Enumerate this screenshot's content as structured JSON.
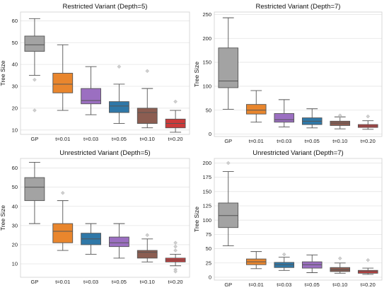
{
  "chart_data": [
    {
      "type": "box",
      "title": "Restricted Variant (Depth=5)",
      "xlabel": "",
      "ylabel": "Tree Size",
      "ylim": [
        8,
        64
      ],
      "yticks": [
        10,
        20,
        30,
        40,
        50,
        60
      ],
      "grid": true,
      "categories": [
        "GP",
        "t=0.01",
        "t=0.03",
        "t=0.05",
        "t=0.10",
        "t=0.20"
      ],
      "series": [
        {
          "category": "GP",
          "whisker_low": 35,
          "q1": 46,
          "median": 49,
          "q3": 53,
          "whisker_high": 61,
          "outliers": [
            33,
            19
          ],
          "color": "#a3a3a3"
        },
        {
          "category": "t=0.01",
          "whisker_low": 19,
          "q1": 27,
          "median": 31,
          "q3": 36,
          "whisker_high": 49,
          "outliers": [],
          "color": "#e9862d"
        },
        {
          "category": "t=0.03",
          "whisker_low": 17,
          "q1": 22,
          "median": 23.5,
          "q3": 29,
          "whisker_high": 39,
          "outliers": [],
          "color": "#9b6fc1"
        },
        {
          "category": "t=0.05",
          "whisker_low": 13,
          "q1": 18,
          "median": 21,
          "q3": 23,
          "whisker_high": 31,
          "outliers": [
            39
          ],
          "color": "#2f78a8"
        },
        {
          "category": "t=0.10",
          "whisker_low": 11,
          "q1": 13,
          "median": 18,
          "q3": 20,
          "whisker_high": 29,
          "outliers": [
            37
          ],
          "color": "#8c5d51"
        },
        {
          "category": "t=0.20",
          "whisker_low": 9,
          "q1": 11,
          "median": 13,
          "q3": 15,
          "whisker_high": 19,
          "outliers": [
            23
          ],
          "color": "#cc3a3a"
        }
      ]
    },
    {
      "type": "box",
      "title": "Restricted Variant (Depth=7)",
      "xlabel": "",
      "ylabel": "Tree Size",
      "ylim": [
        -5,
        255
      ],
      "yticks": [
        0,
        50,
        100,
        150,
        200,
        250
      ],
      "grid": true,
      "categories": [
        "GP",
        "t=0.01",
        "t=0.03",
        "t=0.05",
        "t=0.10",
        "t=0.20"
      ],
      "series": [
        {
          "category": "GP",
          "whisker_low": 52,
          "q1": 97,
          "median": 111,
          "q3": 180,
          "whisker_high": 243,
          "outliers": [],
          "color": "#a3a3a3"
        },
        {
          "category": "t=0.01",
          "whisker_low": 25,
          "q1": 42,
          "median": 50,
          "q3": 62,
          "whisker_high": 91,
          "outliers": [],
          "color": "#e9862d"
        },
        {
          "category": "t=0.03",
          "whisker_low": 15,
          "q1": 25,
          "median": 30,
          "q3": 43,
          "whisker_high": 72,
          "outliers": [],
          "color": "#9b6fc1"
        },
        {
          "category": "t=0.05",
          "whisker_low": 13,
          "q1": 20,
          "median": 27,
          "q3": 34,
          "whisker_high": 53,
          "outliers": [],
          "color": "#2f78a8"
        },
        {
          "category": "t=0.10",
          "whisker_low": 11,
          "q1": 18,
          "median": 23,
          "q3": 27,
          "whisker_high": 36,
          "outliers": [
            39
          ],
          "color": "#8c5d51"
        },
        {
          "category": "t=0.20",
          "whisker_low": 10,
          "q1": 14,
          "median": 17,
          "q3": 20,
          "whisker_high": 28,
          "outliers": [
            37
          ],
          "color": "#cc3a3a"
        }
      ]
    },
    {
      "type": "box",
      "title": "Unrestricted Variant (Depth=5)",
      "xlabel": "",
      "ylabel": "Tree Size",
      "ylim": [
        3,
        65
      ],
      "yticks": [
        10,
        20,
        30,
        40,
        50,
        60
      ],
      "grid": true,
      "categories": [
        "GP",
        "t=0.01",
        "t=0.03",
        "t=0.05",
        "t=0.10",
        "t=0.20"
      ],
      "series": [
        {
          "category": "GP",
          "whisker_low": 31,
          "q1": 43,
          "median": 50,
          "q3": 55,
          "whisker_high": 63,
          "outliers": [],
          "color": "#a3a3a3"
        },
        {
          "category": "t=0.01",
          "whisker_low": 17,
          "q1": 21,
          "median": 27,
          "q3": 31,
          "whisker_high": 43,
          "outliers": [
            47
          ],
          "color": "#e9862d"
        },
        {
          "category": "t=0.03",
          "whisker_low": 15,
          "q1": 20,
          "median": 23,
          "q3": 26,
          "whisker_high": 31,
          "outliers": [],
          "color": "#2f78a8"
        },
        {
          "category": "t=0.05",
          "whisker_low": 13,
          "q1": 19,
          "median": 21,
          "q3": 24,
          "whisker_high": 31,
          "outliers": [],
          "color": "#9b6fc1"
        },
        {
          "category": "t=0.10",
          "whisker_low": 11,
          "q1": 13,
          "median": 16,
          "q3": 17,
          "whisker_high": 23,
          "outliers": [
            25
          ],
          "color": "#8c5d51"
        },
        {
          "category": "t=0.20",
          "whisker_low": 9,
          "q1": 11,
          "median": 12,
          "q3": 13,
          "whisker_high": 15,
          "outliers": [
            17,
            19,
            21,
            7,
            6
          ],
          "color": "#cc3a3a"
        }
      ]
    },
    {
      "type": "box",
      "title": "Unrestricted Variant (Depth=7)",
      "xlabel": "",
      "ylabel": "Tree Size",
      "ylim": [
        -5,
        208
      ],
      "yticks": [
        0,
        25,
        50,
        75,
        100,
        125,
        150,
        175,
        200
      ],
      "grid": true,
      "categories": [
        "GP",
        "t=0.01",
        "t=0.03",
        "t=0.05",
        "t=0.10",
        "t=0.20"
      ],
      "series": [
        {
          "category": "GP",
          "whisker_low": 55,
          "q1": 87,
          "median": 108,
          "q3": 130,
          "whisker_high": 185,
          "outliers": [
            200
          ],
          "color": "#a3a3a3"
        },
        {
          "category": "t=0.01",
          "whisker_low": 15,
          "q1": 22,
          "median": 27,
          "q3": 32,
          "whisker_high": 45,
          "outliers": [],
          "color": "#e9862d"
        },
        {
          "category": "t=0.03",
          "whisker_low": 12,
          "q1": 17,
          "median": 22,
          "q3": 26,
          "whisker_high": 35,
          "outliers": [
            40
          ],
          "color": "#2f78a8"
        },
        {
          "category": "t=0.05",
          "whisker_low": 8,
          "q1": 16,
          "median": 22,
          "q3": 27,
          "whisker_high": 39,
          "outliers": [],
          "color": "#9b6fc1"
        },
        {
          "category": "t=0.10",
          "whisker_low": 7,
          "q1": 10,
          "median": 13,
          "q3": 17,
          "whisker_high": 25,
          "outliers": [
            33
          ],
          "color": "#8c5d51"
        },
        {
          "category": "t=0.20",
          "whisker_low": 5,
          "q1": 7,
          "median": 10,
          "q3": 12,
          "whisker_high": 16,
          "outliers": [
            30
          ],
          "color": "#cc3a3a"
        }
      ]
    }
  ]
}
